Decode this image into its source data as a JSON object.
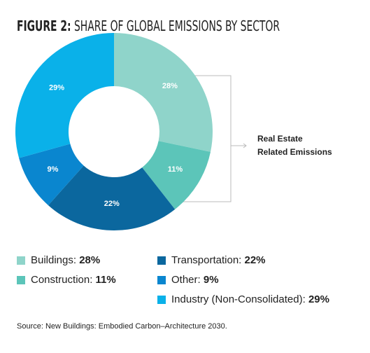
{
  "chart_data": {
    "type": "donut",
    "figure_label": "FIGURE 2:",
    "title": "SHARE OF GLOBAL EMISSIONS BY SECTOR",
    "categories": [
      "Buildings:",
      "Construction:",
      "Transportation:",
      "Other:",
      "Industry (Non-Consolidated):"
    ],
    "values": [
      28,
      11,
      22,
      9,
      29
    ],
    "value_labels": [
      "28%",
      "11%",
      "22%",
      "9%",
      "29%"
    ],
    "colors": [
      "#8fd4ca",
      "#5cc5b9",
      "#0b679e",
      "#0a86cf",
      "#0ab1e9"
    ],
    "annotation": [
      "Real Estate",
      "Related Emissions"
    ],
    "source": "Source: New Buildings: Embodied Carbon–Architecture 2030."
  }
}
